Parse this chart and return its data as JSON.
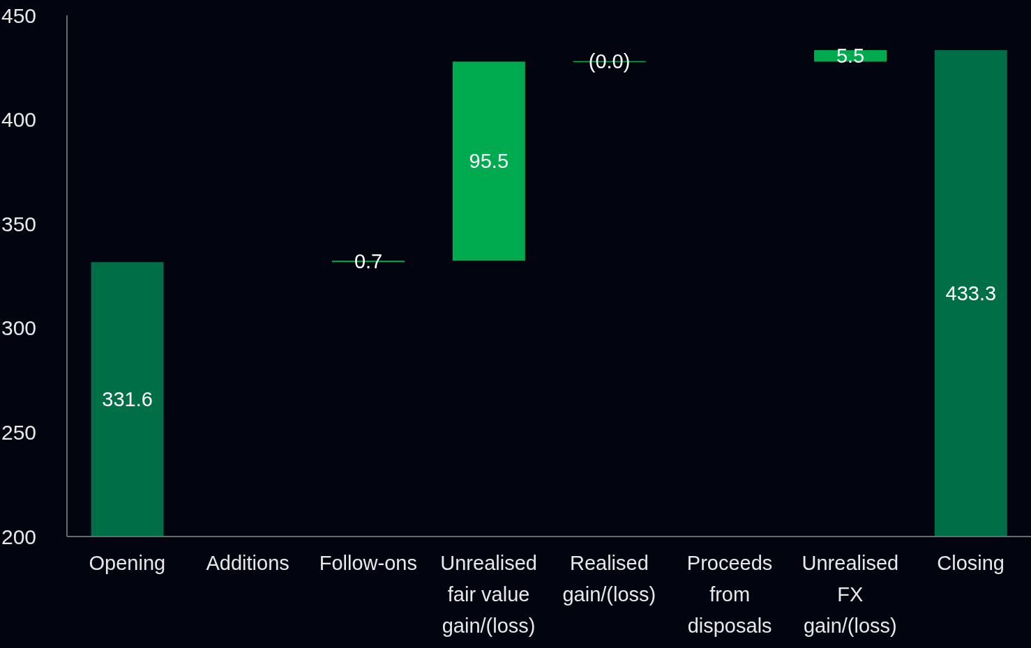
{
  "chart_data": {
    "type": "bar",
    "categories": [
      "Opening",
      "Additions",
      "Follow-ons",
      "Unrealised fair value gain/(loss)",
      "Realised gain/(loss)",
      "Proceeds from disposals",
      "Unrealised FX gain/(loss)",
      "Closing"
    ],
    "values": [
      331.6,
      null,
      0.7,
      95.5,
      0.0,
      null,
      5.5,
      433.3
    ],
    "base": [
      null,
      null,
      331.6,
      332.3,
      427.8,
      null,
      427.8,
      null
    ],
    "value_labels": [
      "331.6",
      null,
      "0.7",
      "95.5",
      "(0.0)",
      null,
      "5.5",
      "433.3"
    ],
    "colors": [
      "#006e47",
      null,
      "#00aa4f",
      "#00aa4f",
      "#00aa4f",
      null,
      "#00aa4f",
      "#006e47"
    ],
    "ylim": [
      200,
      450
    ],
    "yticks": [
      200,
      250,
      300,
      350,
      400,
      450
    ],
    "grid": false,
    "legend": false
  }
}
